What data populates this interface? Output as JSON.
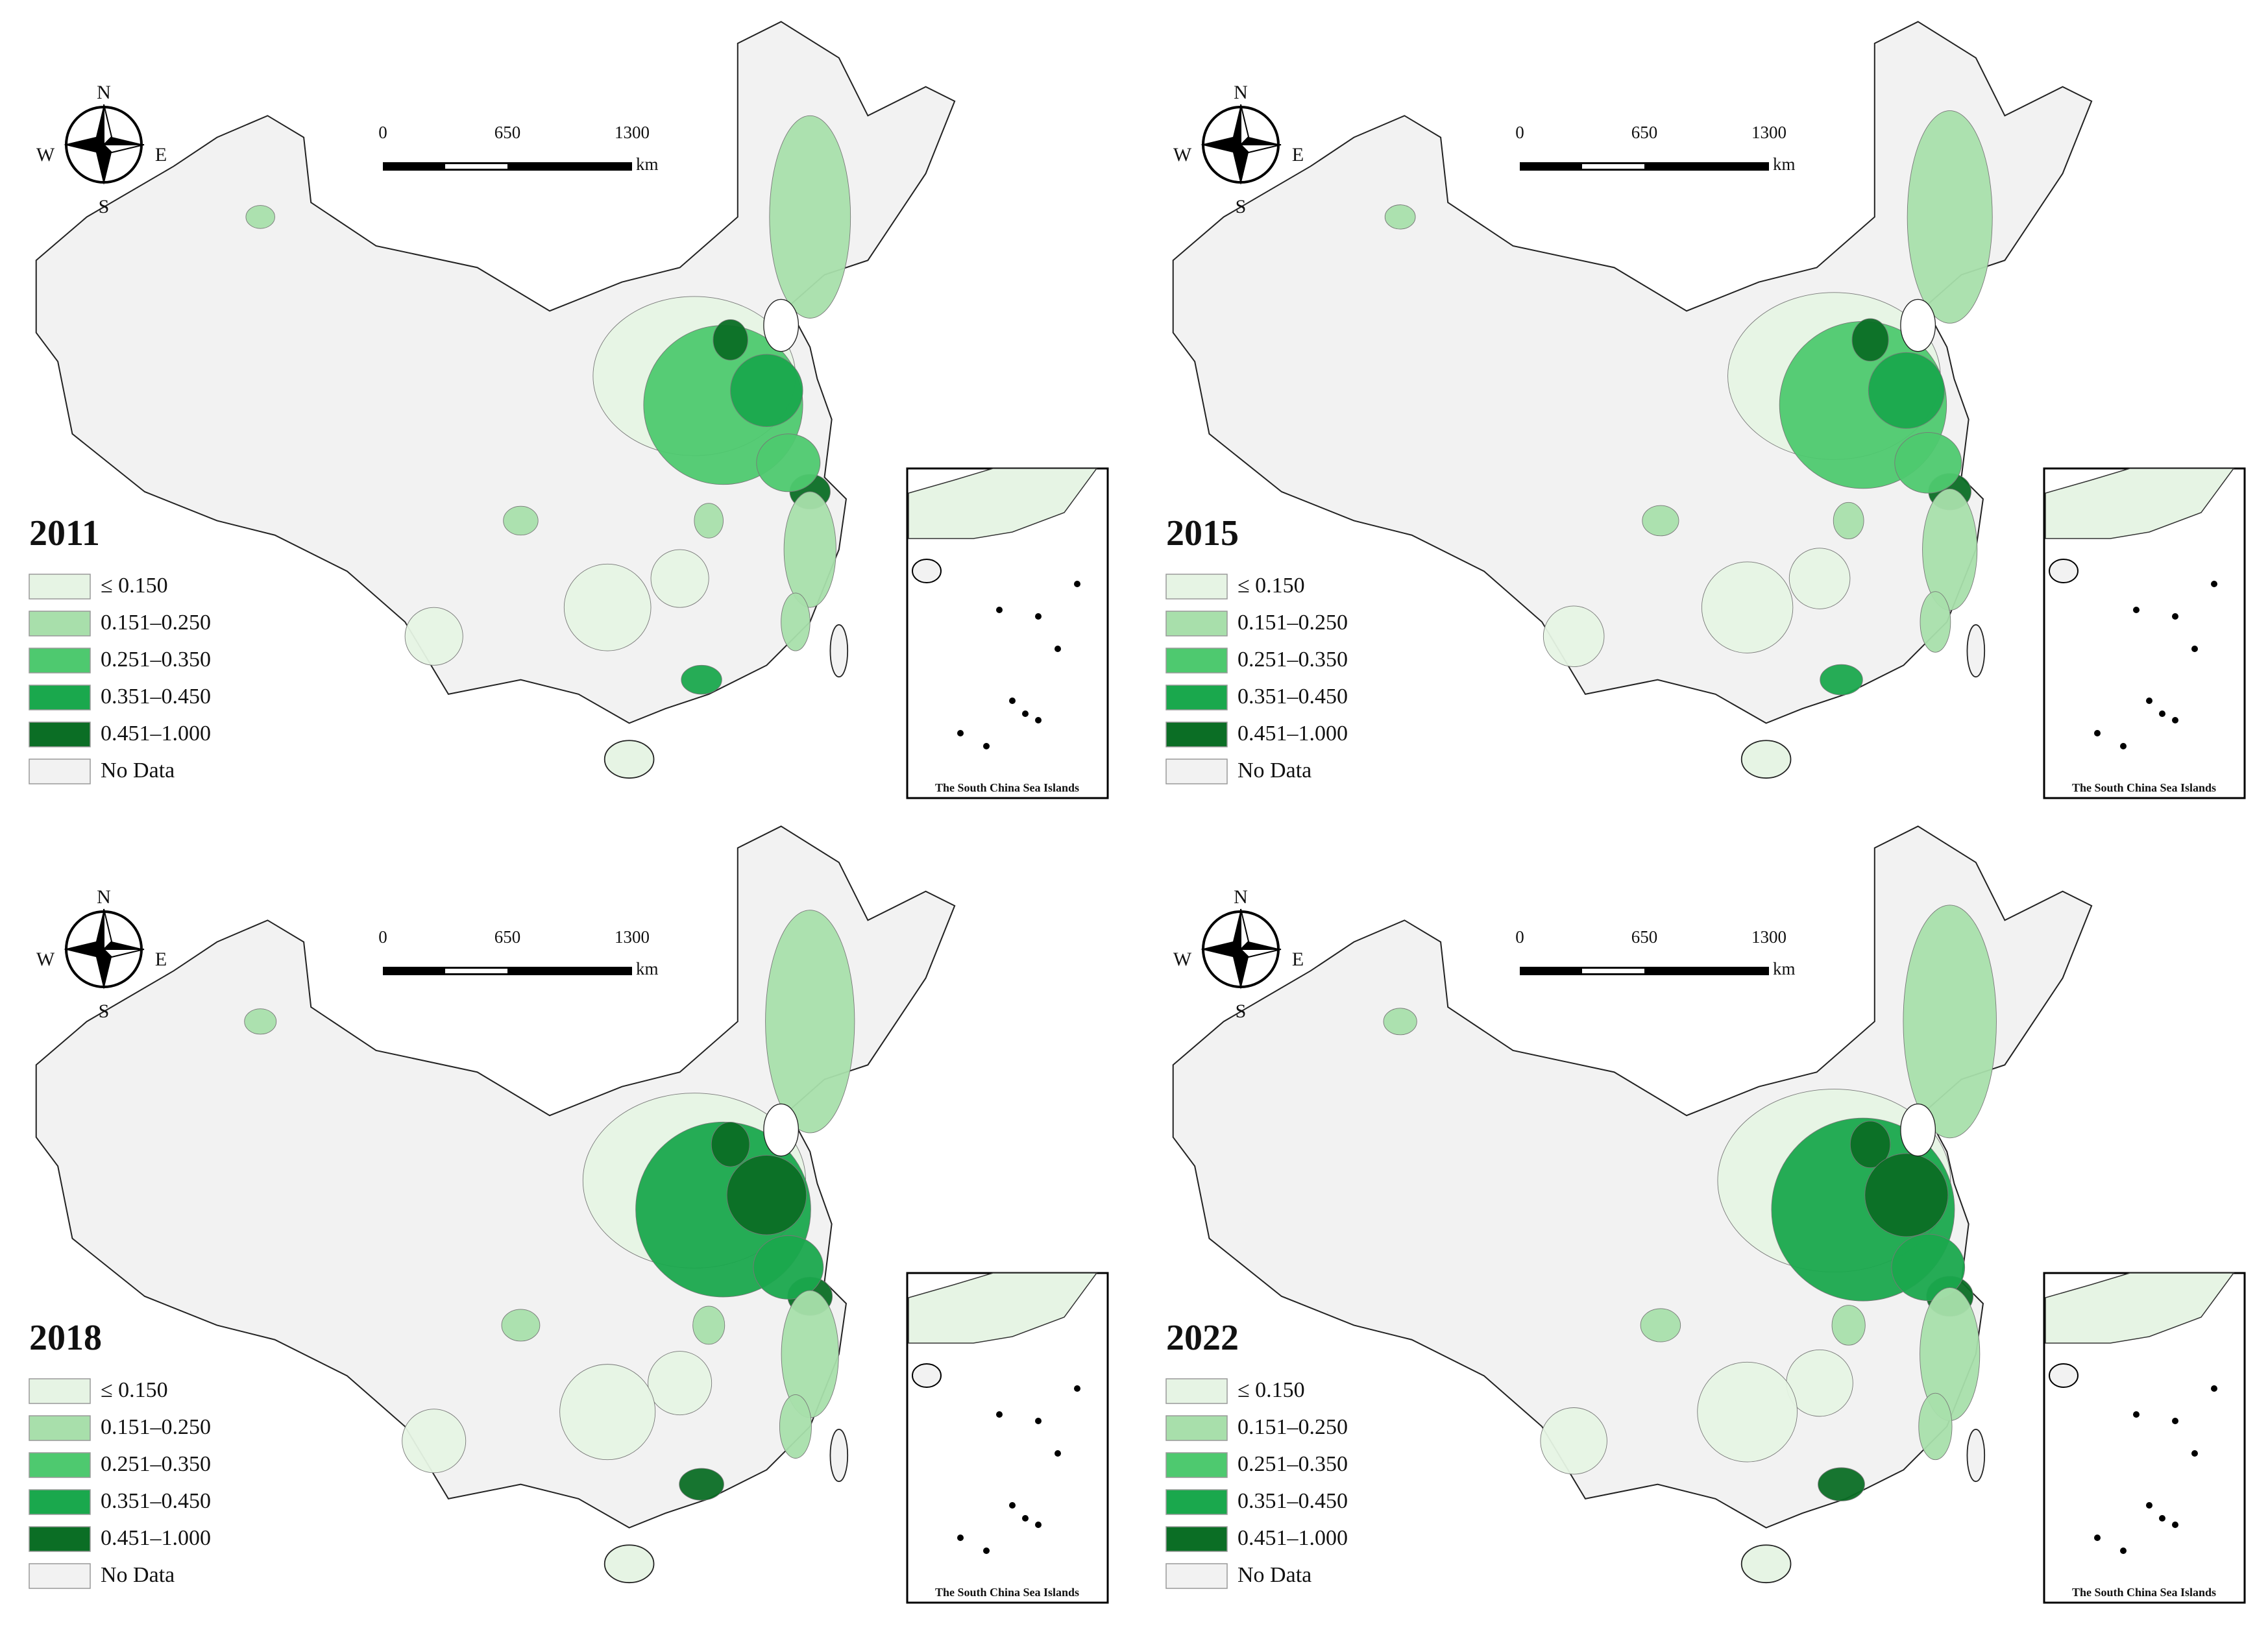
{
  "panels": [
    {
      "year": "2011"
    },
    {
      "year": "2015"
    },
    {
      "year": "2018"
    },
    {
      "year": "2022"
    }
  ],
  "legend": {
    "items": [
      {
        "label": "≤ 0.150",
        "color": "#e6f4e4"
      },
      {
        "label": "0.151–0.250",
        "color": "#a8dfab"
      },
      {
        "label": "0.251–0.350",
        "color": "#4ec96f"
      },
      {
        "label": "0.351–0.450",
        "color": "#1aa84d"
      },
      {
        "label": "0.451–1.000",
        "color": "#0b6e25"
      },
      {
        "label": "No Data",
        "color": "#f2f2f2"
      }
    ]
  },
  "scale_bar": {
    "labels": [
      "0",
      "650",
      "1300"
    ],
    "unit": "km"
  },
  "compass": {
    "north": "N",
    "south": "S",
    "west": "W",
    "east": "E"
  },
  "inset_caption": "The South China Sea Islands"
}
